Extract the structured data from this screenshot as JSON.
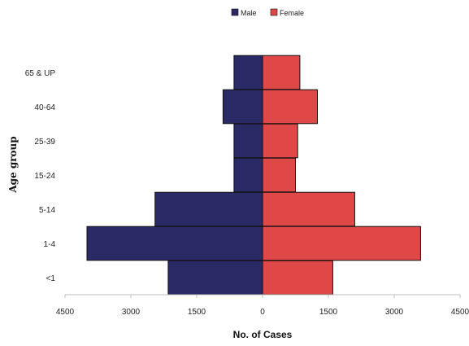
{
  "chart_data": {
    "type": "bar",
    "orientation": "horizontal",
    "layout": "population-pyramid",
    "title": "",
    "xlabel": "No. of Cases",
    "ylabel": "Age group",
    "categories": [
      "<1",
      "1-4",
      "5-14",
      "15-24",
      "25-39",
      "40-64",
      "65 & UP"
    ],
    "series": [
      {
        "name": "Male",
        "color": "#2a2a66",
        "side": "left",
        "values": [
          2150,
          4000,
          2450,
          650,
          650,
          900,
          650
        ]
      },
      {
        "name": "Female",
        "color": "#e04848",
        "side": "right",
        "values": [
          1600,
          3600,
          2100,
          750,
          800,
          1250,
          850
        ]
      }
    ],
    "xlim": [
      -4500,
      4500
    ],
    "x_ticks": [
      -4500,
      -3000,
      -1500,
      0,
      1500,
      3000,
      4500
    ],
    "x_tick_labels": [
      "4500",
      "3000",
      "1500",
      "0",
      "1500",
      "3000",
      "4500"
    ],
    "legend": {
      "position": "top-center",
      "entries": [
        "Male",
        "Female"
      ]
    },
    "grid": false
  }
}
